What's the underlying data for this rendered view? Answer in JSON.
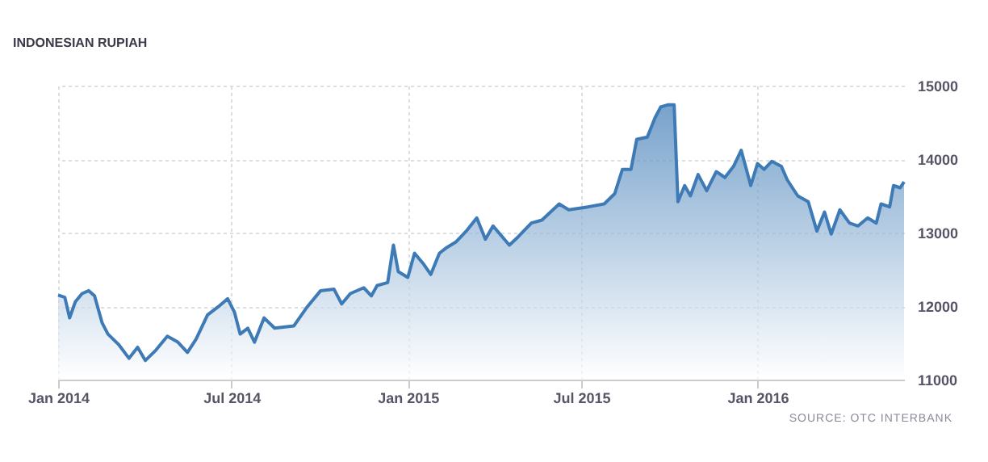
{
  "chart_data": {
    "type": "area",
    "title": "INDONESIAN RUPIAH",
    "annotations": [
      "SOURCE: OTC INTERBANK"
    ],
    "x": [
      "2014-01-01",
      "2014-01-08",
      "2014-01-13",
      "2014-01-19",
      "2014-01-26",
      "2014-02-02",
      "2014-02-08",
      "2014-02-16",
      "2014-02-22",
      "2014-03-05",
      "2014-03-16",
      "2014-03-25",
      "2014-04-02",
      "2014-04-13",
      "2014-04-25",
      "2014-05-06",
      "2014-05-16",
      "2014-05-25",
      "2014-06-06",
      "2014-06-17",
      "2014-06-27",
      "2014-07-04",
      "2014-07-10",
      "2014-07-18",
      "2014-07-25",
      "2014-08-04",
      "2014-08-15",
      "2014-09-04",
      "2014-09-18",
      "2014-10-02",
      "2014-10-16",
      "2014-10-24",
      "2014-11-02",
      "2014-11-16",
      "2014-11-24",
      "2014-11-30",
      "2014-12-11",
      "2014-12-17",
      "2014-12-22",
      "2015-01-01",
      "2015-01-08",
      "2015-01-17",
      "2015-01-25",
      "2015-02-03",
      "2015-02-11",
      "2015-02-20",
      "2015-03-03",
      "2015-03-14",
      "2015-03-23",
      "2015-03-31",
      "2015-04-17",
      "2015-04-26",
      "2015-05-10",
      "2015-05-21",
      "2015-06-08",
      "2015-06-18",
      "2015-07-08",
      "2015-07-25",
      "2015-08-05",
      "2015-08-13",
      "2015-08-22",
      "2015-08-28",
      "2015-09-08",
      "2015-09-16",
      "2015-09-22",
      "2015-09-30",
      "2015-10-03",
      "2015-10-06",
      "2015-10-10",
      "2015-10-17",
      "2015-10-23",
      "2015-10-31",
      "2015-11-09",
      "2015-11-19",
      "2015-11-28",
      "2015-12-07",
      "2015-12-15",
      "2015-12-25",
      "2016-01-01",
      "2016-01-08",
      "2016-01-16",
      "2016-01-26",
      "2016-02-01",
      "2016-02-12",
      "2016-02-23",
      "2016-03-03",
      "2016-03-11",
      "2016-03-18",
      "2016-03-27",
      "2016-04-06",
      "2016-04-15",
      "2016-04-25",
      "2016-05-04",
      "2016-05-09",
      "2016-05-18",
      "2016-05-22",
      "2016-05-29",
      "2016-06-02"
    ],
    "series": [
      {
        "color": "#3e7bb6",
        "values": [
          12150,
          12120,
          11840,
          12060,
          12170,
          12210,
          12140,
          11770,
          11620,
          11480,
          11290,
          11440,
          11260,
          11400,
          11590,
          11510,
          11370,
          11550,
          11880,
          11990,
          12100,
          11920,
          11620,
          11700,
          11510,
          11840,
          11700,
          11730,
          11990,
          12210,
          12230,
          12030,
          12170,
          12250,
          12140,
          12280,
          12320,
          12830,
          12470,
          12390,
          12720,
          12580,
          12430,
          12720,
          12800,
          12870,
          13020,
          13200,
          12910,
          13090,
          12830,
          12940,
          13130,
          13170,
          13390,
          13310,
          13350,
          13390,
          13530,
          13860,
          13860,
          14270,
          14300,
          14560,
          14710,
          14740,
          14740,
          14740,
          13420,
          13640,
          13500,
          13790,
          13570,
          13830,
          13750,
          13900,
          14120,
          13640,
          13940,
          13860,
          13970,
          13900,
          13720,
          13500,
          13420,
          13020,
          13280,
          12980,
          13310,
          13130,
          13090,
          13200,
          13130,
          13390,
          13350,
          13640,
          13610,
          13690
        ]
      }
    ],
    "xlim": [
      "2014-01-01",
      "2016-06-02"
    ],
    "xticks": [
      {
        "value": "2014-01-01",
        "label": "Jan 2014"
      },
      {
        "value": "2014-07-01",
        "label": "Jul 2014"
      },
      {
        "value": "2015-01-01",
        "label": "Jan 2015"
      },
      {
        "value": "2015-07-01",
        "label": "Jul 2015"
      },
      {
        "value": "2016-01-01",
        "label": "Jan 2016"
      }
    ],
    "ylim": [
      11000,
      15000
    ],
    "yticks": [
      11000,
      12000,
      13000,
      14000,
      15000
    ],
    "grid": true
  }
}
